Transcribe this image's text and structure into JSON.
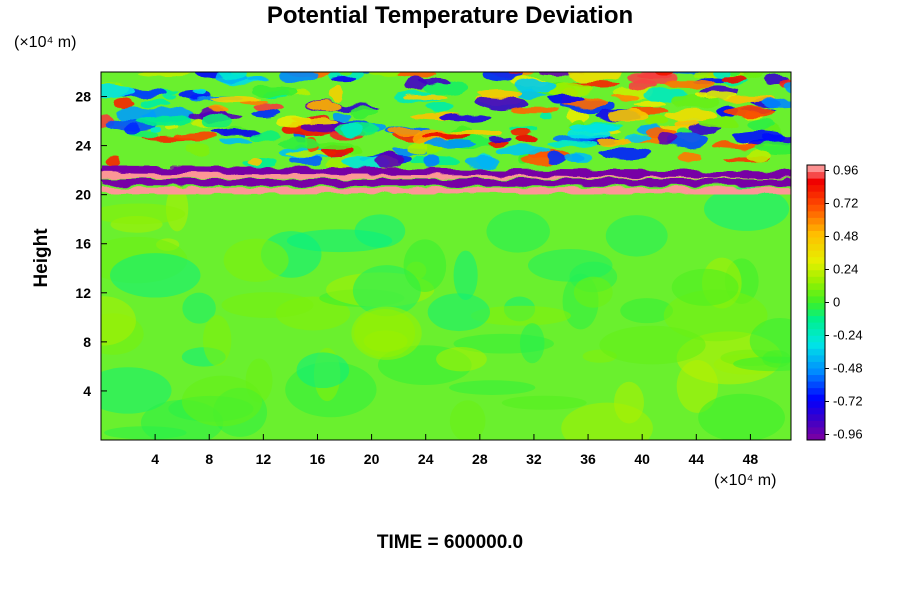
{
  "chart_data": {
    "type": "heatmap",
    "title": "Potential Temperature Deviation",
    "ylabel": "Height",
    "x_unit": "(×10⁴ m)",
    "y_unit": "(×10⁴ m)",
    "xlim": [
      0,
      51
    ],
    "ylim": [
      0,
      30
    ],
    "x_ticks": [
      4,
      8,
      12,
      16,
      20,
      24,
      28,
      32,
      36,
      40,
      44,
      48
    ],
    "y_ticks": [
      4,
      8,
      12,
      16,
      20,
      24,
      28
    ],
    "color_scale": {
      "min": -1.0,
      "max": 1.0,
      "tick_values": [
        0.96,
        0.72,
        0.48,
        0.24,
        0,
        -0.24,
        -0.48,
        -0.72,
        -0.96
      ],
      "tick_labels": [
        "0.96",
        "0.72",
        "0.48",
        "0.24",
        "0",
        "-0.24",
        "-0.48",
        "-0.72",
        "-0.96"
      ]
    },
    "field_features": [
      {
        "description": "near-zero field",
        "y_range": [
          0,
          19
        ],
        "value": 0.05
      },
      {
        "description": "strong positive band",
        "y_center": 20.3,
        "value": 0.98
      },
      {
        "description": "strong negative band",
        "y_center": 21.0,
        "value": -0.98
      },
      {
        "description": "strong positive band",
        "y_center": 21.6,
        "value": 0.98
      },
      {
        "description": "strong negative band",
        "y_center": 22.1,
        "value": -0.98
      },
      {
        "description": "wave activity",
        "y_range": [
          22.5,
          30
        ],
        "value_range": [
          -0.9,
          0.9
        ]
      }
    ],
    "footer": "TIME = 600000.0"
  }
}
